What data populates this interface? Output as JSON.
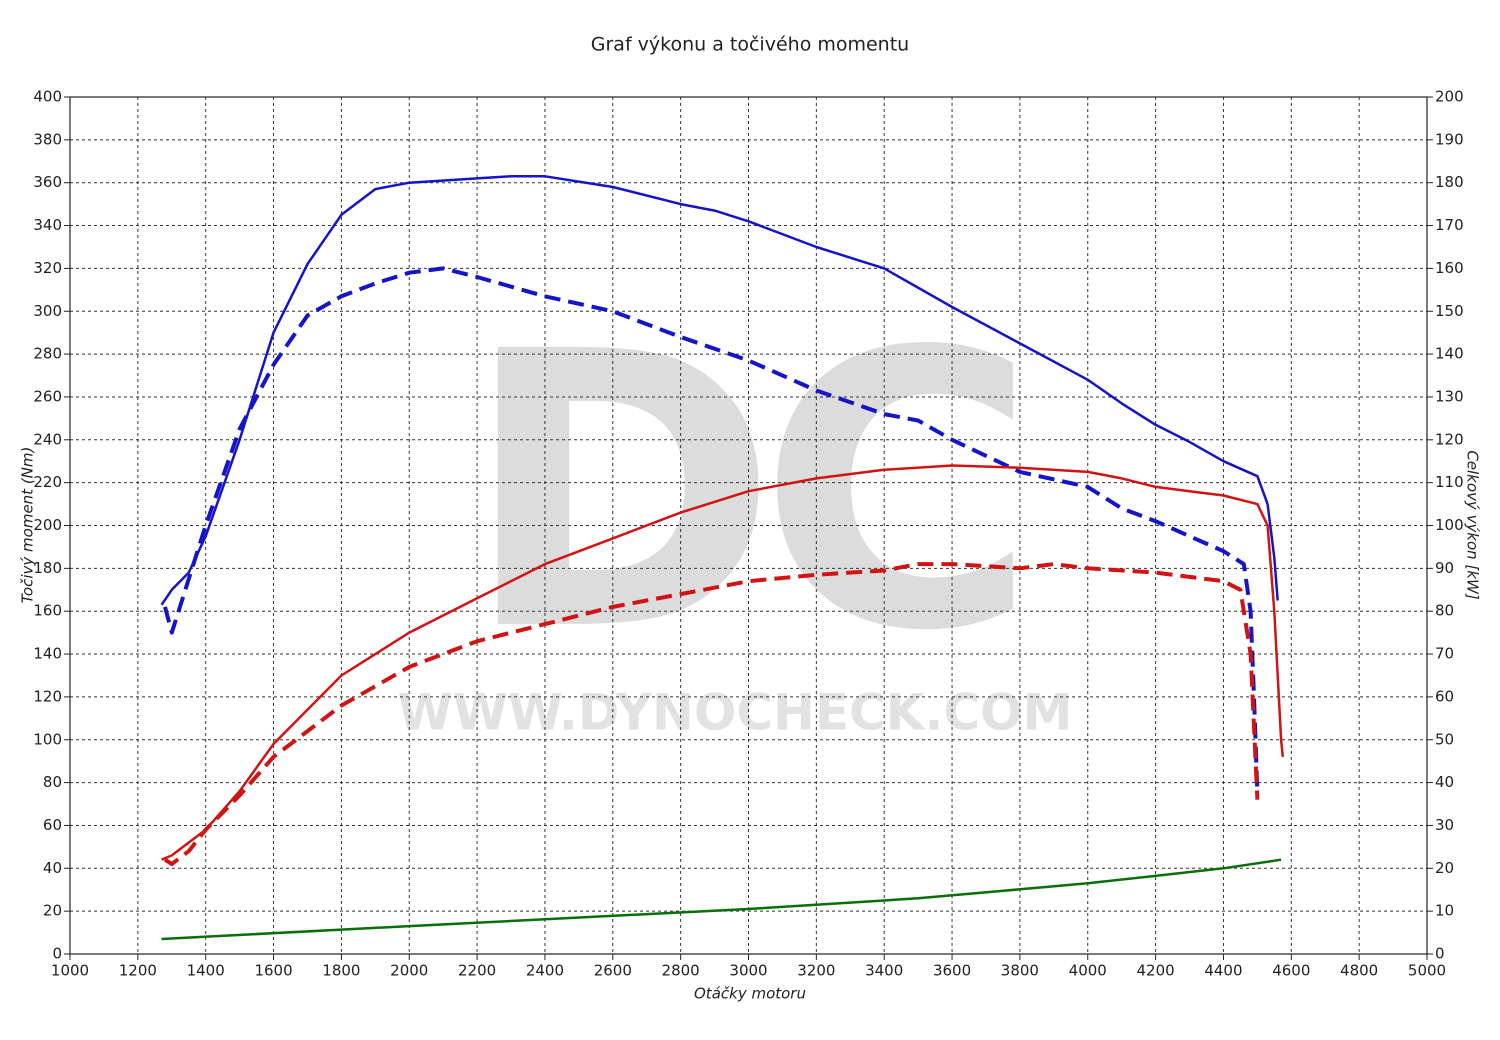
{
  "chart_data": {
    "type": "line",
    "title": "Graf výkonu a točivého momentu",
    "xlabel": "Otáčky motoru",
    "ylabel": "Točivý moment (Nm)",
    "y2label": "Celkový výkon [kW]",
    "watermark": {
      "logo": "DC",
      "url": "WWW.DYNOCHECK.COM"
    },
    "grid": true,
    "xlim": [
      1000,
      5000
    ],
    "xticks": [
      1000,
      1200,
      1400,
      1600,
      1800,
      2000,
      2200,
      2400,
      2600,
      2800,
      3000,
      3200,
      3400,
      3600,
      3800,
      4000,
      4200,
      4400,
      4600,
      4800,
      5000
    ],
    "ylim": [
      0,
      400
    ],
    "yticks": [
      0,
      20,
      40,
      60,
      80,
      100,
      120,
      140,
      160,
      180,
      200,
      220,
      240,
      260,
      280,
      300,
      320,
      340,
      360,
      380,
      400
    ],
    "y2lim": [
      0,
      200
    ],
    "y2ticks": [
      0,
      10,
      20,
      30,
      40,
      50,
      60,
      70,
      80,
      90,
      100,
      110,
      120,
      130,
      140,
      150,
      160,
      170,
      180,
      190,
      200
    ],
    "series": [
      {
        "color": "#1414c8",
        "style": "solid",
        "axis": "y",
        "x": [
          1270,
          1300,
          1350,
          1400,
          1500,
          1600,
          1700,
          1800,
          1900,
          2000,
          2200,
          2300,
          2400,
          2600,
          2800,
          2900,
          3000,
          3200,
          3400,
          3600,
          3800,
          4000,
          4100,
          4200,
          4300,
          4400,
          4500,
          4530,
          4550,
          4560
        ],
        "values": [
          163,
          170,
          178,
          195,
          240,
          290,
          322,
          345,
          357,
          360,
          362,
          363,
          363,
          358,
          350,
          347,
          342,
          330,
          320,
          302,
          285,
          268,
          257,
          247,
          239,
          230,
          223,
          210,
          185,
          165
        ]
      },
      {
        "color": "#1414c8",
        "style": "dashed",
        "axis": "y",
        "x": [
          1280,
          1300,
          1320,
          1350,
          1400,
          1500,
          1600,
          1700,
          1800,
          1900,
          2000,
          2100,
          2200,
          2400,
          2600,
          2800,
          3000,
          3200,
          3400,
          3500,
          3600,
          3800,
          4000,
          4100,
          4200,
          4300,
          4400,
          4460,
          4480,
          4490,
          4500
        ],
        "values": [
          162,
          150,
          160,
          175,
          200,
          245,
          275,
          298,
          307,
          313,
          318,
          320,
          316,
          307,
          300,
          288,
          277,
          263,
          252,
          249,
          240,
          225,
          218,
          208,
          202,
          195,
          188,
          182,
          160,
          120,
          75
        ]
      },
      {
        "color": "#d01414",
        "style": "solid",
        "axis": "y2",
        "x": [
          1270,
          1300,
          1400,
          1500,
          1600,
          1800,
          2000,
          2200,
          2400,
          2600,
          2800,
          3000,
          3200,
          3400,
          3600,
          3800,
          4000,
          4100,
          4200,
          4300,
          4400,
          4500,
          4530,
          4550,
          4570,
          4575
        ],
        "values": [
          22,
          23,
          29,
          38,
          49,
          65,
          75,
          83,
          91,
          97,
          103,
          108,
          111,
          113,
          114,
          113.5,
          112.5,
          111,
          109,
          108,
          107,
          105,
          100,
          80,
          50,
          46
        ]
      },
      {
        "color": "#d01414",
        "style": "dashed",
        "axis": "y2",
        "x": [
          1280,
          1300,
          1350,
          1400,
          1500,
          1600,
          1800,
          2000,
          2200,
          2400,
          2600,
          2800,
          3000,
          3200,
          3400,
          3500,
          3600,
          3800,
          3900,
          4000,
          4200,
          4400,
          4450,
          4480,
          4500
        ],
        "values": [
          22,
          21,
          24,
          29,
          37,
          46,
          58,
          67,
          73,
          77,
          81,
          84,
          87,
          88.5,
          89.5,
          91,
          91,
          90,
          91,
          90,
          89,
          87,
          85,
          70,
          36
        ]
      },
      {
        "color": "#0a6e0a",
        "style": "solid",
        "axis": "y2",
        "x": [
          1270,
          2000,
          3000,
          3500,
          4000,
          4400,
          4570
        ],
        "values": [
          3.5,
          6.5,
          10.5,
          13,
          16.5,
          20,
          22
        ]
      }
    ]
  }
}
